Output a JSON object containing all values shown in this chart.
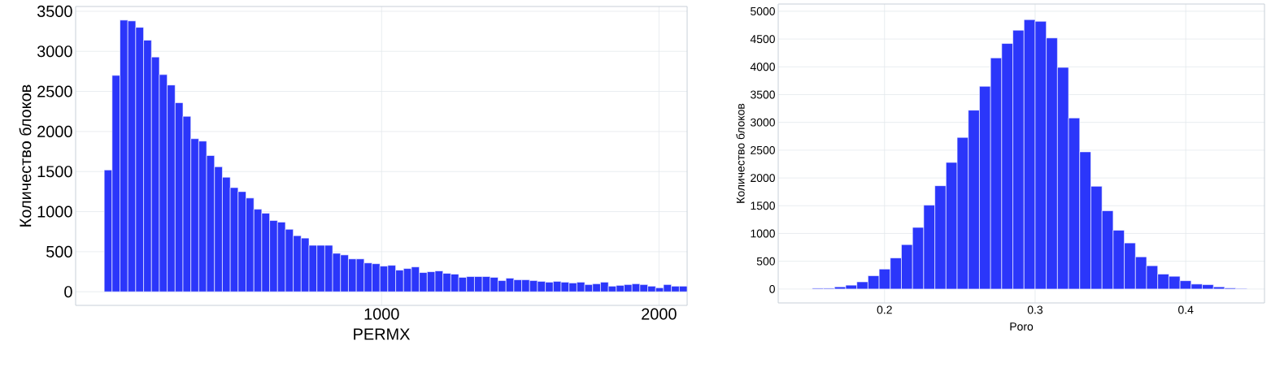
{
  "chart_data": [
    {
      "type": "histogram",
      "xlabel": "PERMX",
      "ylabel": "Количество блоков",
      "color": "#2b36fa",
      "grid": true,
      "bins": [
        0,
        28.4,
        56.8,
        85.2,
        113.6,
        142,
        170.4,
        198.8,
        227.2,
        255.6,
        284,
        312.4,
        340.8,
        369.2,
        397.6,
        426,
        454.4,
        482.8,
        511.2,
        539.6,
        568,
        596.4,
        624.8,
        653.2,
        681.6,
        710,
        738.4,
        766.8,
        795.2,
        823.6,
        852,
        880.4,
        908.8,
        937.2,
        965.6,
        994,
        1022.4,
        1050.8,
        1079.2,
        1107.6,
        1136,
        1164.4,
        1192.8,
        1221.2,
        1249.6,
        1278,
        1306.4,
        1334.8,
        1363.2,
        1391.6,
        1420,
        1448.4,
        1476.8,
        1505.2,
        1533.6,
        1562,
        1590.4,
        1618.8,
        1647.2,
        1675.6,
        1704,
        1732.4,
        1760.8,
        1789.2,
        1817.6,
        1846,
        1874.4,
        1902.8,
        1931.2,
        1959.6,
        1988,
        2016.4,
        2044.8,
        2073.2,
        2101.6
      ],
      "values": [
        1520,
        2700,
        3390,
        3380,
        3300,
        3140,
        2930,
        2710,
        2580,
        2360,
        2190,
        1910,
        1880,
        1700,
        1560,
        1430,
        1300,
        1250,
        1170,
        1030,
        980,
        890,
        870,
        780,
        700,
        670,
        580,
        580,
        580,
        480,
        460,
        410,
        410,
        360,
        350,
        320,
        330,
        270,
        290,
        310,
        240,
        250,
        260,
        230,
        220,
        180,
        190,
        190,
        190,
        180,
        140,
        170,
        150,
        150,
        140,
        130,
        120,
        130,
        120,
        110,
        120,
        90,
        100,
        120,
        70,
        80,
        90,
        100,
        90,
        70,
        50,
        90,
        70,
        70
      ],
      "xlim": [
        -103,
        2101.6
      ],
      "ylim": [
        -170,
        3560
      ],
      "xticks": [
        1000,
        2000
      ],
      "yticks": [
        0,
        500,
        1000,
        1500,
        2000,
        2500,
        3000,
        3500
      ]
    },
    {
      "type": "histogram",
      "xlabel": "Poro",
      "ylabel": "Количество блоков",
      "color": "#2b36fa",
      "grid": true,
      "bins": [
        0.152,
        0.1594,
        0.1668,
        0.1742,
        0.1816,
        0.189,
        0.1964,
        0.2038,
        0.2112,
        0.2186,
        0.226,
        0.2334,
        0.2408,
        0.2482,
        0.2556,
        0.263,
        0.2704,
        0.2778,
        0.2852,
        0.2926,
        0.3,
        0.3074,
        0.3148,
        0.3222,
        0.3296,
        0.337,
        0.3444,
        0.3518,
        0.3592,
        0.3666,
        0.374,
        0.3814,
        0.3888,
        0.3962,
        0.4036,
        0.411,
        0.4184,
        0.4258,
        0.4332,
        0.4406
      ],
      "values": [
        15,
        15,
        40,
        70,
        130,
        240,
        360,
        560,
        800,
        1110,
        1510,
        1860,
        2280,
        2730,
        3220,
        3650,
        4160,
        4420,
        4660,
        4850,
        4820,
        4520,
        3990,
        3080,
        2470,
        1850,
        1410,
        1060,
        830,
        580,
        420,
        270,
        230,
        150,
        90,
        80,
        40,
        20,
        10
      ],
      "xlim": [
        0.1294,
        0.4523
      ],
      "ylim": [
        -250,
        5130
      ],
      "xticks": [
        0.2,
        0.3,
        0.4
      ],
      "yticks": [
        0,
        500,
        1000,
        1500,
        2000,
        2500,
        3000,
        3500,
        4000,
        4500,
        5000
      ]
    }
  ]
}
